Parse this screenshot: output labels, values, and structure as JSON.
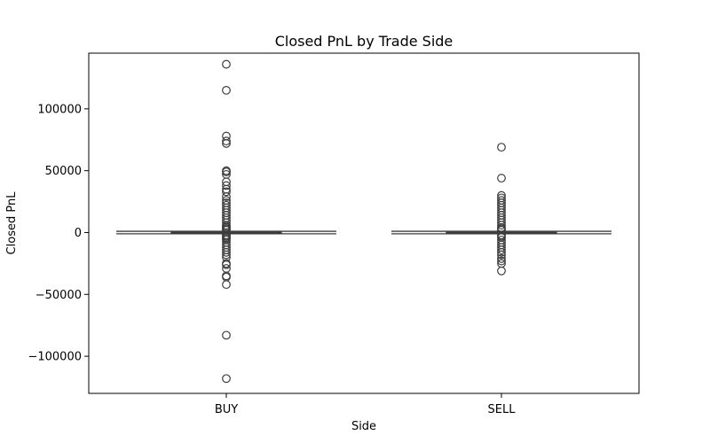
{
  "chart_data": {
    "type": "box",
    "title": "Closed PnL by Trade Side",
    "xlabel": "Side",
    "ylabel": "Closed PnL",
    "categories": [
      "BUY",
      "SELL"
    ],
    "ylim": [
      -130000,
      145000
    ],
    "yticks": [
      100000,
      50000,
      0,
      -50000,
      -100000
    ],
    "ytick_labels": [
      "100000",
      "50000",
      "0",
      "−50000",
      "−100000"
    ],
    "boxes": [
      {
        "category": "BUY",
        "whisker_low": -1000,
        "q1": -200,
        "median": 0,
        "q3": 200,
        "whisker_high": 1000,
        "outliers": [
          136000,
          115000,
          78000,
          74000,
          72000,
          50000,
          49000,
          47000,
          41000,
          38000,
          35000,
          33000,
          29000,
          26000,
          24000,
          22000,
          20000,
          18000,
          16000,
          14000,
          12000,
          10000,
          8000,
          6000,
          5000,
          4000,
          3000,
          2000,
          -2000,
          -3000,
          -4000,
          -5000,
          -6000,
          -8000,
          -10000,
          -12000,
          -14000,
          -16000,
          -18000,
          -20000,
          -25000,
          -26000,
          -29000,
          -35000,
          -36000,
          -42000,
          -83000,
          -118000
        ]
      },
      {
        "category": "SELL",
        "whisker_low": -1000,
        "q1": -500,
        "median": -200,
        "q3": 200,
        "whisker_high": 1000,
        "outliers": [
          69000,
          44000,
          30000,
          28000,
          26000,
          24000,
          22000,
          20000,
          18000,
          16000,
          14000,
          12000,
          10000,
          8000,
          6000,
          4000,
          3000,
          2000,
          -2000,
          -3000,
          -4000,
          -6000,
          -8000,
          -10000,
          -12000,
          -14000,
          -16000,
          -18000,
          -21000,
          -23000,
          -25000,
          -31000
        ]
      }
    ],
    "colors": {
      "box_line": "#3d3d3d",
      "axis": "#000000",
      "background": "#ffffff"
    },
    "grid": false,
    "legend": "none"
  }
}
